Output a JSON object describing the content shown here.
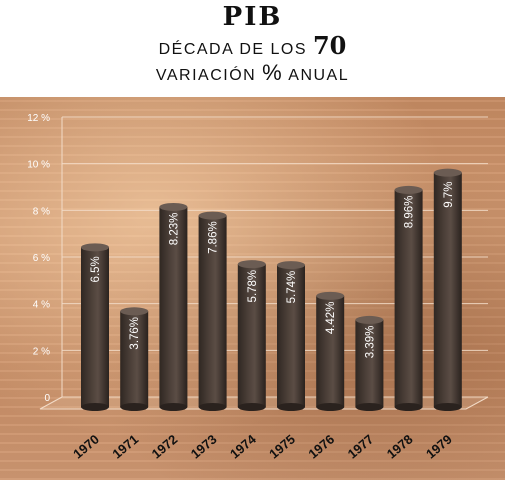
{
  "title": {
    "main": "PIB",
    "line1_text": "DÉCADA DE LOS",
    "line1_year": "70",
    "line2_pre": "VARIACIÓN",
    "line2_pct": "%",
    "line2_post": "ANUAL"
  },
  "colors": {
    "bar": "#4a3e37",
    "bar_top": "#6b5c53",
    "grid": "#f3dcc8",
    "label": "#ffffff",
    "axis_text": "#ffffff",
    "year_text": "#111111"
  },
  "chart_data": {
    "type": "bar",
    "title": "PIB",
    "subtitle": "DÉCADA DE LOS 70 — VARIACIÓN % ANUAL",
    "categories": [
      "1970",
      "1971",
      "1972",
      "1973",
      "1974",
      "1975",
      "1976",
      "1977",
      "1978",
      "1979"
    ],
    "values": [
      6.5,
      3.76,
      8.23,
      7.86,
      5.78,
      5.74,
      4.42,
      3.39,
      8.96,
      9.7
    ],
    "data_labels": [
      "6.5%",
      "3.76%",
      "8.23%",
      "7.86%",
      "5.78%",
      "5.74%",
      "4.42%",
      "3.39%",
      "8.96%",
      "9.7%"
    ],
    "yticks": [
      "0",
      "2 %",
      "4 %",
      "6 %",
      "8 %",
      "10 %",
      "12 %"
    ],
    "ylim": [
      0,
      12
    ],
    "grid": true
  }
}
